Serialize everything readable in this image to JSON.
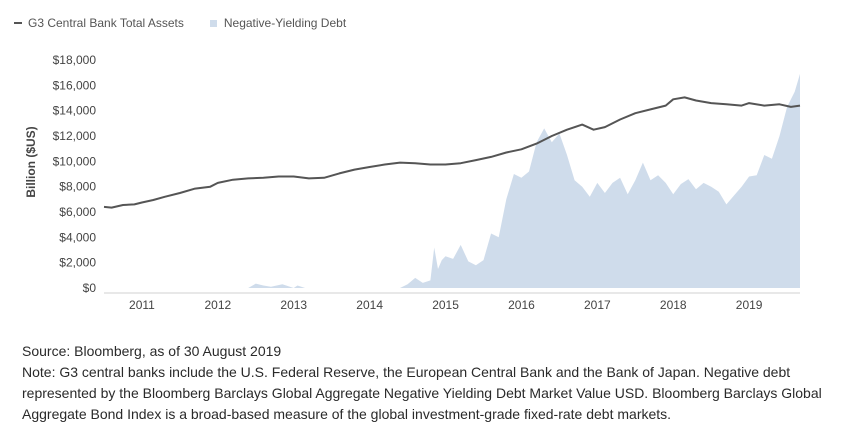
{
  "legend": {
    "line_label": "G3 Central Bank Total Assets",
    "area_label": "Negative-Yielding Debt"
  },
  "notes": {
    "source": "Source: Bloomberg, as of 30 August 2019",
    "note": "Note: G3 central banks include the U.S. Federal Reserve, the European Central Bank and the Bank of Japan. Negative debt represented by the Bloomberg Barclays Global Aggregate Negative Yielding Debt Market Value USD. Bloomberg Barclays Global Aggregate Bond Index is a broad-based measure of the global investment-grade fixed-rate debt markets."
  },
  "colors": {
    "line": "#555555",
    "area": "#cfdceb",
    "axis": "#d0d0d0"
  },
  "chart_data": {
    "type": "line",
    "ylabel": "Billion ($US)",
    "ylim": [
      0,
      18000
    ],
    "yticks": [
      0,
      2000,
      4000,
      6000,
      8000,
      10000,
      12000,
      14000,
      16000,
      18000
    ],
    "ytick_labels": [
      "$0",
      "$2,000",
      "$4,000",
      "$6,000",
      "$8,000",
      "$10,000",
      "$12,000",
      "$14,000",
      "$16,000",
      "$18,000"
    ],
    "xlim": [
      2010.5,
      2019.67
    ],
    "xticks": [
      2011,
      2012,
      2013,
      2014,
      2015,
      2016,
      2017,
      2018,
      2019
    ],
    "xtick_labels": [
      "2011",
      "2012",
      "2013",
      "2014",
      "2015",
      "2016",
      "2017",
      "2018",
      "2019"
    ],
    "grid": false,
    "legend_position": "top-left",
    "series": [
      {
        "name": "G3 Central Bank Total Assets",
        "type": "line",
        "x": [
          2010.5,
          2010.6,
          2010.75,
          2010.9,
          2011.0,
          2011.15,
          2011.3,
          2011.5,
          2011.7,
          2011.9,
          2012.0,
          2012.2,
          2012.4,
          2012.6,
          2012.8,
          2013.0,
          2013.2,
          2013.4,
          2013.6,
          2013.8,
          2014.0,
          2014.2,
          2014.4,
          2014.6,
          2014.8,
          2015.0,
          2015.2,
          2015.4,
          2015.6,
          2015.8,
          2016.0,
          2016.2,
          2016.4,
          2016.6,
          2016.8,
          2016.95,
          2017.1,
          2017.3,
          2017.5,
          2017.7,
          2017.9,
          2018.0,
          2018.15,
          2018.3,
          2018.5,
          2018.7,
          2018.9,
          2019.0,
          2019.2,
          2019.4,
          2019.55,
          2019.67
        ],
        "y": [
          6400,
          6350,
          6550,
          6600,
          6750,
          6950,
          7200,
          7500,
          7850,
          8000,
          8300,
          8550,
          8650,
          8700,
          8800,
          8800,
          8650,
          8700,
          9050,
          9350,
          9550,
          9750,
          9900,
          9850,
          9750,
          9750,
          9850,
          10100,
          10350,
          10700,
          10950,
          11400,
          12000,
          12500,
          12900,
          12500,
          12700,
          13300,
          13800,
          14100,
          14400,
          14900,
          15050,
          14800,
          14600,
          14500,
          14400,
          14600,
          14400,
          14500,
          14300,
          14400
        ]
      },
      {
        "name": "Negative-Yielding Debt",
        "type": "area",
        "x": [
          2010.5,
          2012.4,
          2012.5,
          2012.6,
          2012.7,
          2012.85,
          2013.0,
          2013.05,
          2013.1,
          2013.15,
          2014.4,
          2014.5,
          2014.6,
          2014.7,
          2014.8,
          2014.85,
          2014.9,
          2014.95,
          2015.0,
          2015.1,
          2015.2,
          2015.3,
          2015.4,
          2015.5,
          2015.6,
          2015.7,
          2015.8,
          2015.9,
          2016.0,
          2016.1,
          2016.2,
          2016.3,
          2016.4,
          2016.5,
          2016.6,
          2016.7,
          2016.8,
          2016.9,
          2017.0,
          2017.1,
          2017.2,
          2017.3,
          2017.4,
          2017.5,
          2017.6,
          2017.7,
          2017.8,
          2017.9,
          2018.0,
          2018.1,
          2018.2,
          2018.3,
          2018.4,
          2018.5,
          2018.6,
          2018.7,
          2018.8,
          2018.9,
          2019.0,
          2019.1,
          2019.2,
          2019.3,
          2019.4,
          2019.5,
          2019.6,
          2019.67
        ],
        "y": [
          0,
          0,
          350,
          200,
          100,
          300,
          0,
          200,
          100,
          0,
          0,
          300,
          800,
          400,
          600,
          3200,
          1500,
          2200,
          2500,
          2300,
          3400,
          2100,
          1800,
          2200,
          4300,
          4000,
          7000,
          9000,
          8700,
          9200,
          11500,
          12600,
          11500,
          12200,
          10500,
          8500,
          8000,
          7200,
          8300,
          7500,
          8300,
          8700,
          7400,
          8500,
          9900,
          8500,
          8900,
          8300,
          7400,
          8200,
          8600,
          7800,
          8300,
          8000,
          7600,
          6600,
          7300,
          8000,
          8800,
          8900,
          10500,
          10200,
          12000,
          14300,
          15500,
          16900
        ]
      }
    ]
  }
}
